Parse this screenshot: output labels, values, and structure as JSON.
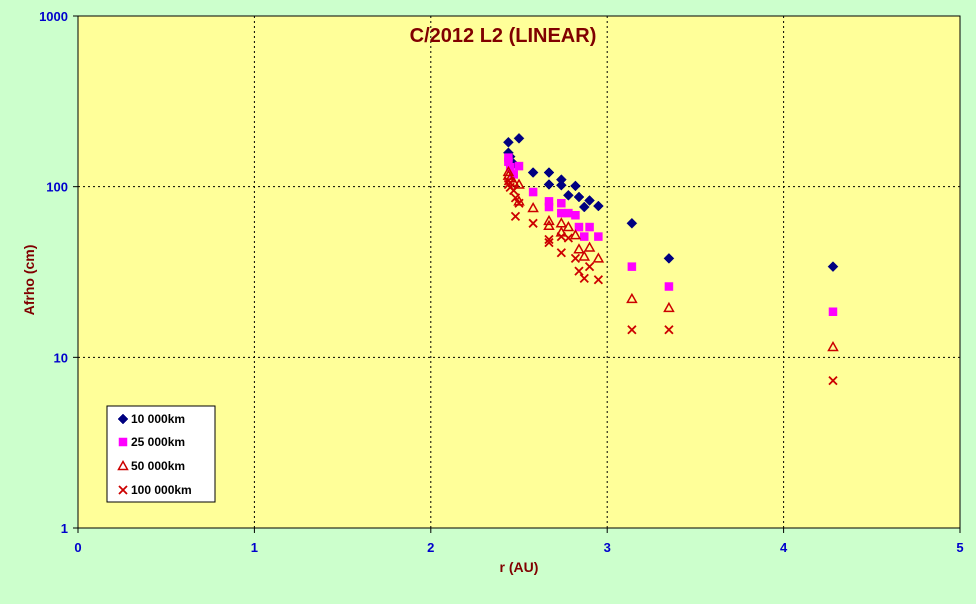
{
  "chart_data": {
    "type": "scatter",
    "title": "C/2012 L2 (LINEAR)",
    "xlabel": "r (AU)",
    "ylabel": "Afrho (cm)",
    "xlim": [
      0,
      5
    ],
    "ylim": [
      1,
      1000
    ],
    "yscale": "log",
    "xticks": [
      "0",
      "1",
      "2",
      "3",
      "4",
      "5"
    ],
    "yticks": [
      "1",
      "10",
      "100",
      "1000"
    ],
    "grid": true,
    "legend": "bottom-left",
    "colors": {
      "chart_background": "#ccffcc",
      "plot_area": "#ffff99",
      "title": "#800000",
      "axis_title": "#800000",
      "tick_labels": "#0000cc"
    },
    "series": [
      {
        "name": "10 000km",
        "marker": "diamond",
        "color": "#000080",
        "points": [
          [
            2.44,
            182
          ],
          [
            2.44,
            158
          ],
          [
            2.45,
            150
          ],
          [
            2.47,
            136
          ],
          [
            2.5,
            192
          ],
          [
            2.58,
            121
          ],
          [
            2.67,
            121
          ],
          [
            2.67,
            103
          ],
          [
            2.74,
            110
          ],
          [
            2.74,
            102
          ],
          [
            2.78,
            89
          ],
          [
            2.82,
            101
          ],
          [
            2.84,
            87
          ],
          [
            2.87,
            76
          ],
          [
            2.9,
            83
          ],
          [
            2.95,
            77
          ],
          [
            3.14,
            61
          ],
          [
            3.35,
            38
          ],
          [
            4.28,
            34
          ]
        ]
      },
      {
        "name": "25 000km",
        "marker": "square",
        "color": "#ff00ff",
        "points": [
          [
            2.44,
            148
          ],
          [
            2.44,
            140
          ],
          [
            2.45,
            130
          ],
          [
            2.47,
            118
          ],
          [
            2.5,
            132
          ],
          [
            2.58,
            93
          ],
          [
            2.67,
            82
          ],
          [
            2.67,
            76
          ],
          [
            2.74,
            80
          ],
          [
            2.74,
            70
          ],
          [
            2.78,
            70
          ],
          [
            2.82,
            68
          ],
          [
            2.84,
            58
          ],
          [
            2.87,
            51
          ],
          [
            2.9,
            58
          ],
          [
            2.95,
            51
          ],
          [
            3.14,
            34
          ],
          [
            3.35,
            26
          ],
          [
            4.28,
            18.5
          ]
        ]
      },
      {
        "name": "50 000km",
        "marker": "triangle",
        "color": "#cc0000",
        "points": [
          [
            2.44,
            122
          ],
          [
            2.44,
            116
          ],
          [
            2.45,
            112
          ],
          [
            2.47,
            106
          ],
          [
            2.5,
            103
          ],
          [
            2.5,
            82
          ],
          [
            2.58,
            75
          ],
          [
            2.67,
            63
          ],
          [
            2.67,
            59
          ],
          [
            2.74,
            61
          ],
          [
            2.74,
            54
          ],
          [
            2.78,
            58
          ],
          [
            2.82,
            52
          ],
          [
            2.84,
            43
          ],
          [
            2.87,
            39
          ],
          [
            2.9,
            44
          ],
          [
            2.95,
            38
          ],
          [
            3.14,
            22
          ],
          [
            3.35,
            19.5
          ],
          [
            4.28,
            11.5
          ]
        ]
      },
      {
        "name": "100 000km",
        "marker": "x",
        "color": "#cc0000",
        "points": [
          [
            2.44,
            108
          ],
          [
            2.44,
            103
          ],
          [
            2.45,
            99
          ],
          [
            2.47,
            95
          ],
          [
            2.48,
            86
          ],
          [
            2.5,
            80
          ],
          [
            2.48,
            67
          ],
          [
            2.58,
            61
          ],
          [
            2.67,
            49
          ],
          [
            2.67,
            47
          ],
          [
            2.74,
            41
          ],
          [
            2.74,
            51
          ],
          [
            2.78,
            50
          ],
          [
            2.82,
            38
          ],
          [
            2.84,
            32
          ],
          [
            2.87,
            29
          ],
          [
            2.9,
            34
          ],
          [
            2.95,
            28.5
          ],
          [
            3.14,
            14.5
          ],
          [
            3.35,
            14.5
          ],
          [
            4.28,
            7.3
          ]
        ]
      }
    ]
  }
}
